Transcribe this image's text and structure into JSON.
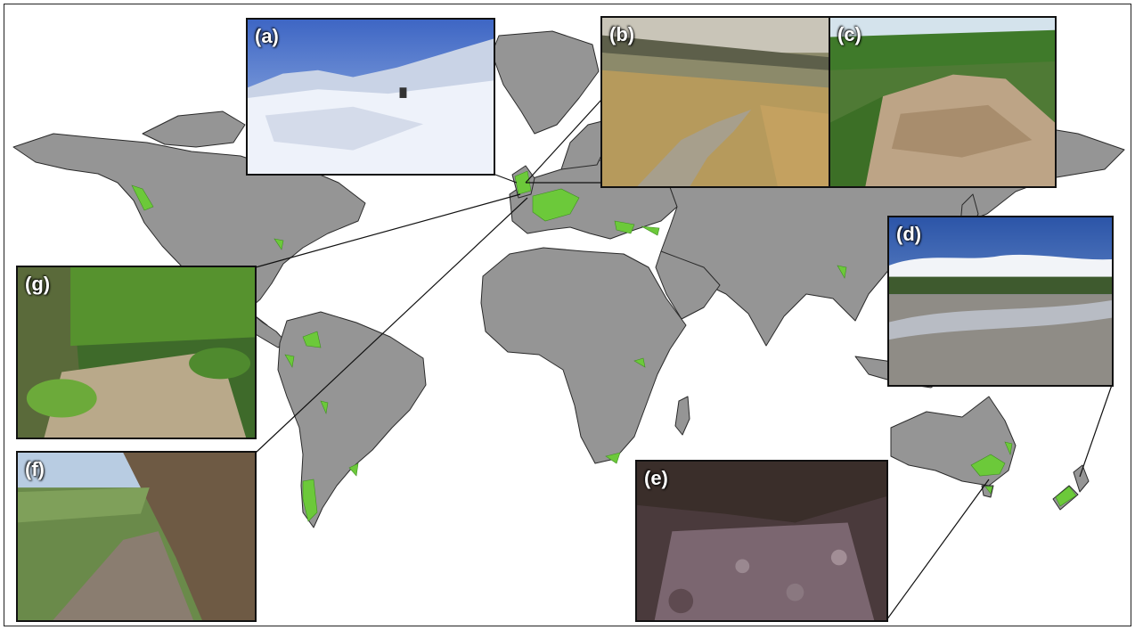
{
  "figure": {
    "map_land_color": "#959595",
    "highlight_color": "#6cc93a",
    "frame_color": "#222222"
  },
  "panels": [
    {
      "id": "a",
      "label": "(a)",
      "scene": "snow-covered upland stream",
      "region": "Scotland"
    },
    {
      "id": "b",
      "label": "(b)",
      "scene": "moorland stream",
      "region": "Britain"
    },
    {
      "id": "c",
      "label": "(c)",
      "scene": "dry bedrock channel",
      "region": "Europe"
    },
    {
      "id": "d",
      "label": "(d)",
      "scene": "braided gravel riverbed",
      "region": "New Zealand"
    },
    {
      "id": "e",
      "label": "(e)",
      "scene": "dry rocky channel",
      "region": "south-east Australia"
    },
    {
      "id": "f",
      "label": "(f)",
      "scene": "dry lowland riverbed",
      "region": "Europe"
    },
    {
      "id": "g",
      "label": "(g)",
      "scene": "dry forest stream bed",
      "region": "Europe"
    }
  ]
}
